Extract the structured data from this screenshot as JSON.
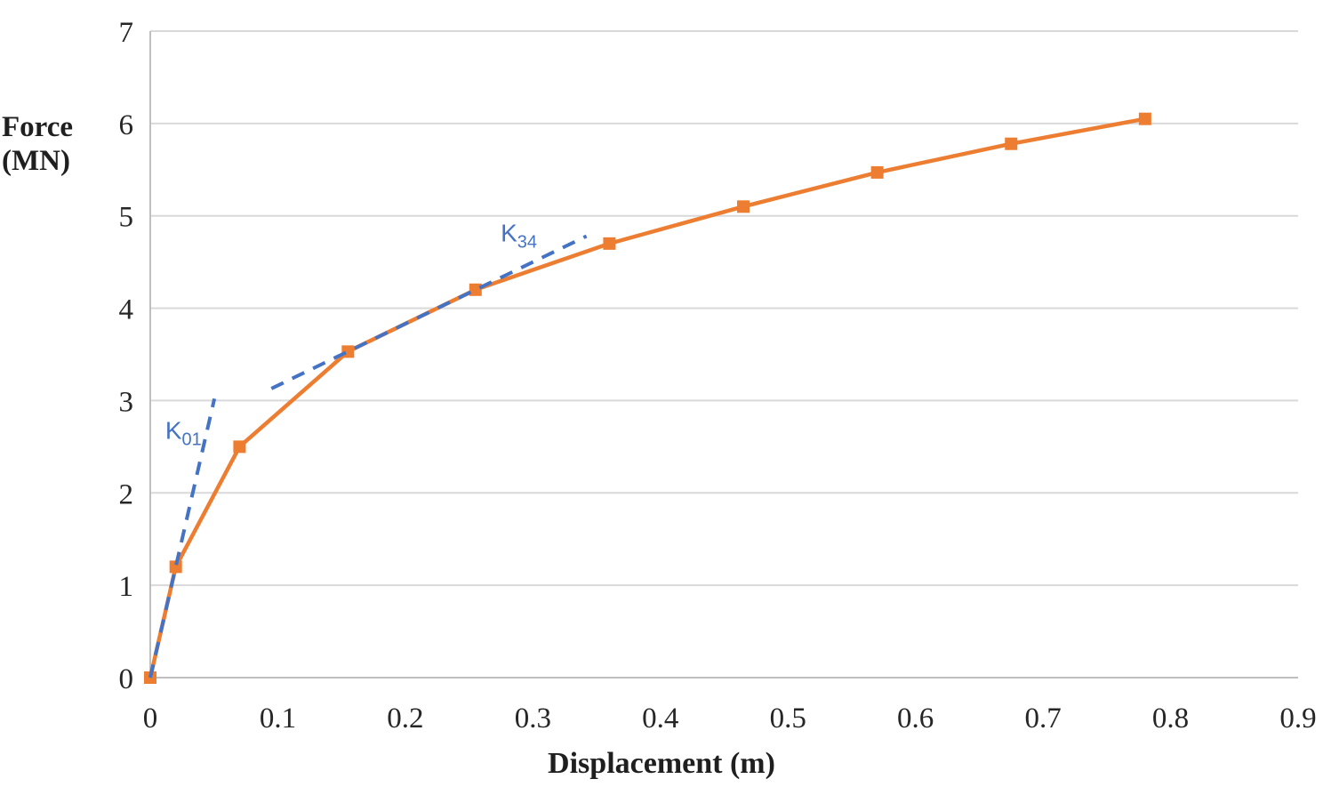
{
  "chart_data": {
    "type": "line",
    "title": "",
    "xlabel": "Displacement (m)",
    "ylabel": "Force (MN)",
    "ylabel_lines": [
      "Force",
      "(MN)"
    ],
    "xlim": [
      0,
      0.9
    ],
    "ylim": [
      0,
      7
    ],
    "grid": "horizontal",
    "legend": "none",
    "xticks": {
      "values": [
        0,
        0.1,
        0.2,
        0.3,
        0.4,
        0.5,
        0.6,
        0.7,
        0.8,
        0.9
      ],
      "labels": [
        "0",
        "0.1",
        "0.2",
        "0.3",
        "0.4",
        "0.5",
        "0.6",
        "0.7",
        "0.8",
        "0.9"
      ]
    },
    "yticks": {
      "values": [
        0,
        1,
        2,
        3,
        4,
        5,
        6,
        7
      ],
      "labels": [
        "0",
        "1",
        "2",
        "3",
        "4",
        "5",
        "6",
        "7"
      ]
    },
    "series": [
      {
        "name": "force-displacement-curve",
        "color": "#ED7D31",
        "marker": "square",
        "marker_size": 14,
        "points": [
          [
            0,
            0
          ],
          [
            0.02,
            1.2
          ],
          [
            0.07,
            2.5
          ],
          [
            0.155,
            3.53
          ],
          [
            0.255,
            4.2
          ],
          [
            0.36,
            4.7
          ],
          [
            0.465,
            5.1
          ],
          [
            0.57,
            5.47
          ],
          [
            0.675,
            5.78
          ],
          [
            0.78,
            6.05
          ]
        ]
      }
    ],
    "annotations": [
      {
        "id": "k01",
        "label_base": "K",
        "label_sub": "01",
        "color": "#4472C4",
        "style": "dashed",
        "line": [
          [
            0,
            0
          ],
          [
            0.0503,
            3.02
          ]
        ],
        "label_pos": [
          0.026,
          2.68
        ]
      },
      {
        "id": "k34",
        "label_base": "K",
        "label_sub": "34",
        "color": "#4472C4",
        "style": "dashed",
        "line": [
          [
            0.095,
            3.13
          ],
          [
            0.342,
            4.78
          ]
        ],
        "label_pos": [
          0.289,
          4.82
        ]
      }
    ],
    "colors": {
      "series": "#ED7D31",
      "annotation": "#4472C4",
      "gridline": "#D9D9D9",
      "axis_line": "#BFBFBF",
      "text": "#262626"
    }
  }
}
